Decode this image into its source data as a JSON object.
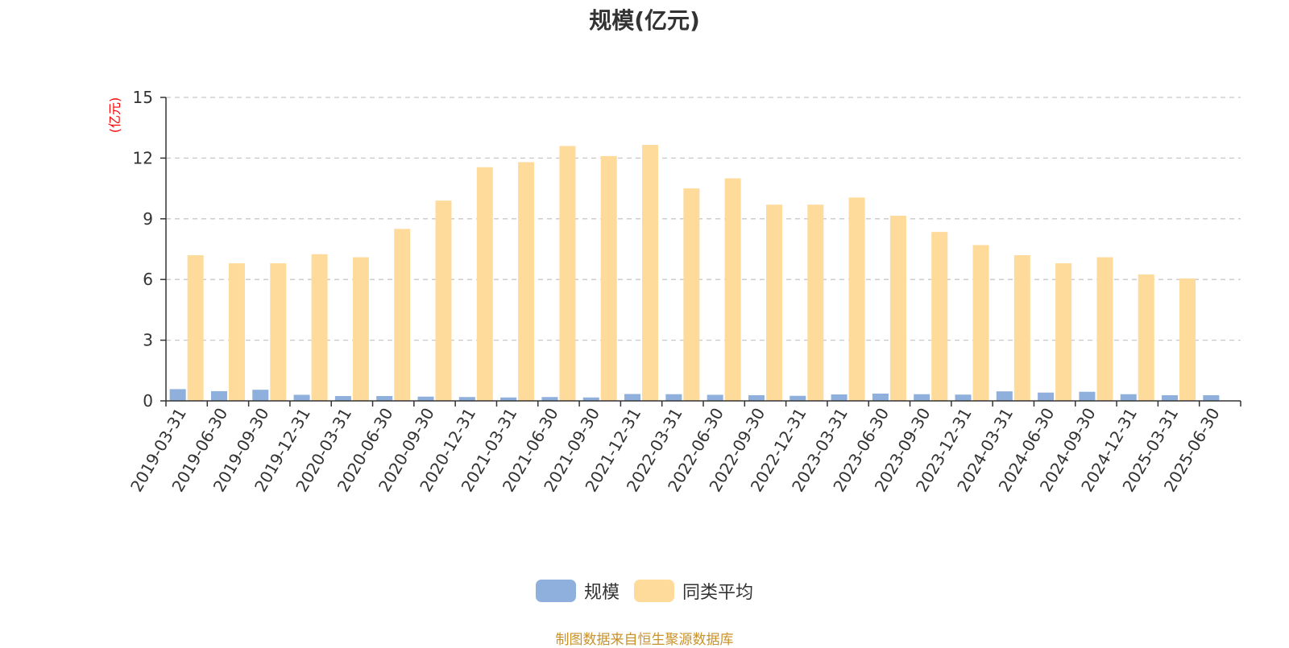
{
  "chart_data": {
    "type": "bar",
    "title": "规模(亿元)",
    "ylabel": "(亿元)",
    "ylim": [
      0,
      15
    ],
    "yticks": [
      0,
      3,
      6,
      9,
      12,
      15
    ],
    "grid": true,
    "legend_position": "bottom",
    "categories": [
      "2019-03-31",
      "2019-06-30",
      "2019-09-30",
      "2019-12-31",
      "2020-03-31",
      "2020-06-30",
      "2020-09-30",
      "2020-12-31",
      "2021-03-31",
      "2021-06-30",
      "2021-09-30",
      "2021-12-31",
      "2022-03-31",
      "2022-06-30",
      "2022-09-30",
      "2022-12-31",
      "2023-03-31",
      "2023-06-30",
      "2023-09-30",
      "2023-12-31",
      "2024-03-31",
      "2024-06-30",
      "2024-09-30",
      "2024-12-31",
      "2025-03-31",
      "2025-06-30"
    ],
    "series": [
      {
        "name": "规模",
        "color": "#8fafdc",
        "values": [
          0.58,
          0.48,
          0.55,
          0.3,
          0.24,
          0.24,
          0.21,
          0.19,
          0.17,
          0.19,
          0.17,
          0.34,
          0.33,
          0.3,
          0.28,
          0.25,
          0.32,
          0.36,
          0.33,
          0.31,
          0.47,
          0.41,
          0.45,
          0.33,
          0.28,
          0.28
        ]
      },
      {
        "name": "同类平均",
        "color": "#ffdb9b",
        "values": [
          7.2,
          6.8,
          6.8,
          7.25,
          7.1,
          8.5,
          9.9,
          11.55,
          11.8,
          12.6,
          12.1,
          12.65,
          10.5,
          11.0,
          9.7,
          9.7,
          10.05,
          9.15,
          8.35,
          7.7,
          7.2,
          6.8,
          7.1,
          6.25,
          6.05,
          null
        ]
      }
    ]
  },
  "legend": {
    "items": [
      {
        "label": "规模",
        "color": "#8fafdc"
      },
      {
        "label": "同类平均",
        "color": "#ffdb9b"
      }
    ]
  },
  "footer": {
    "source": "制图数据来自恒生聚源数据库"
  }
}
